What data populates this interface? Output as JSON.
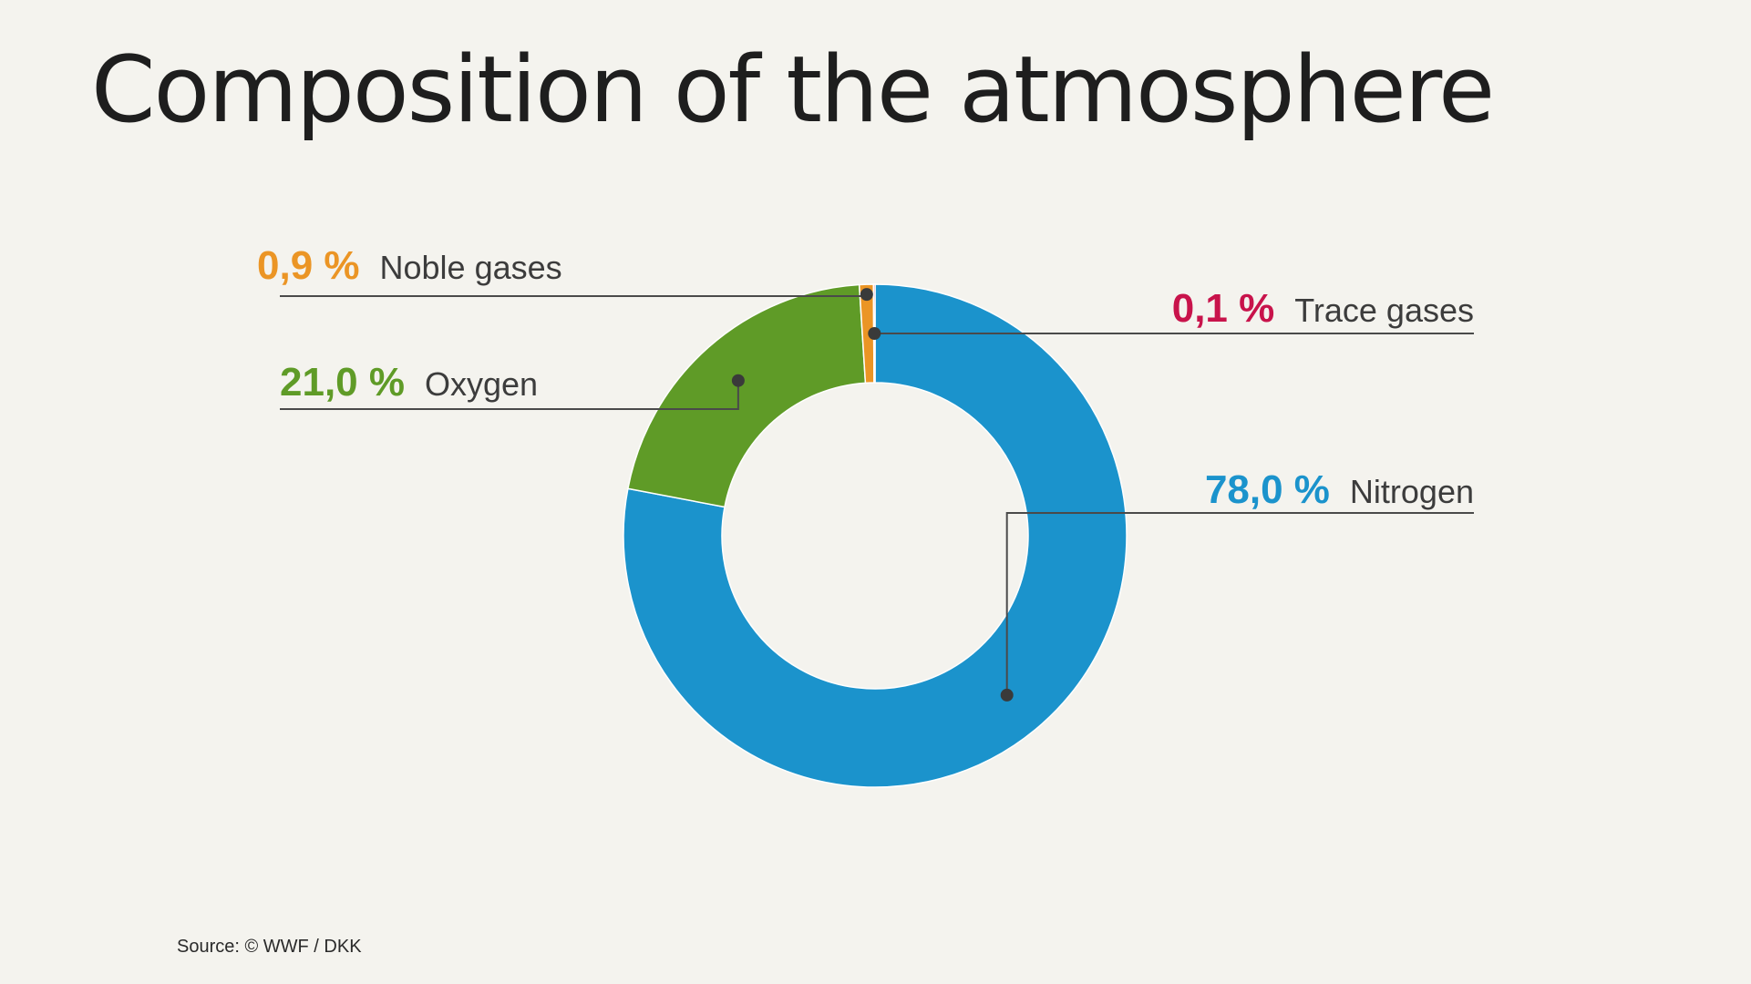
{
  "title": "Composition of the atmosphere",
  "source": "Source: © WWF / DKK",
  "chart_data": {
    "type": "pie",
    "title": "Composition of the atmosphere",
    "unit": "%",
    "categories": [
      "Nitrogen",
      "Oxygen",
      "Noble gases",
      "Trace gases"
    ],
    "values": [
      78.0,
      21.0,
      0.9,
      0.1
    ],
    "value_labels": [
      "78,0 %",
      "21,0 %",
      "0,9 %",
      "0,1 %"
    ],
    "colors": [
      "#1b93cc",
      "#5f9b27",
      "#eb9525",
      "#c8134b"
    ],
    "label_line_color": "#4a4a4a"
  }
}
